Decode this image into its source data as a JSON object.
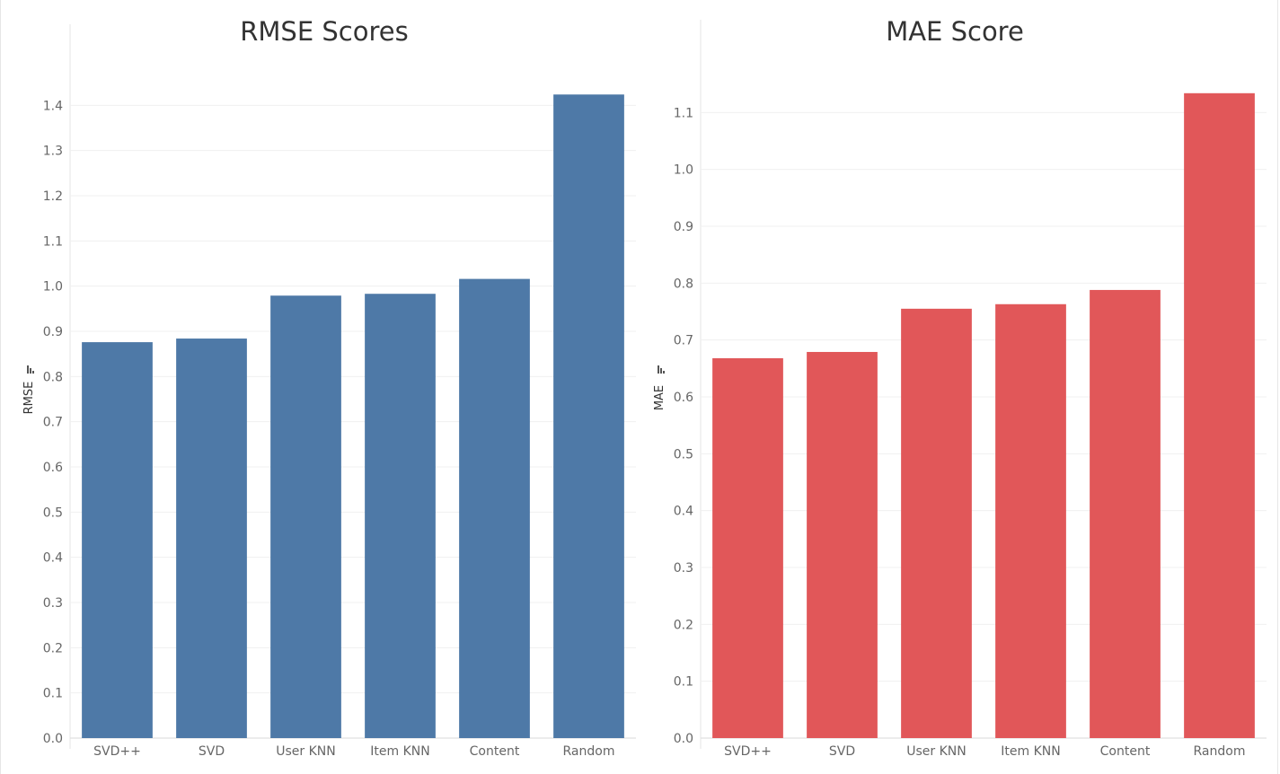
{
  "chart_data": [
    {
      "type": "bar",
      "title": "RMSE Scores",
      "ylabel": "RMSE",
      "categories": [
        "SVD++",
        "SVD",
        "User KNN",
        "Item KNN",
        "Content",
        "Random"
      ],
      "values": [
        0.876,
        0.884,
        0.979,
        0.983,
        1.016,
        1.424
      ],
      "ylim": [
        0,
        1.5
      ],
      "yticks": [
        "0.0",
        "0.1",
        "0.2",
        "0.3",
        "0.4",
        "0.5",
        "0.6",
        "0.7",
        "0.8",
        "0.9",
        "1.0",
        "1.1",
        "1.2",
        "1.3",
        "1.4"
      ],
      "color": "#4e79a7",
      "grid": true
    },
    {
      "type": "bar",
      "title": "MAE Score",
      "ylabel": "MAE",
      "categories": [
        "SVD++",
        "SVD",
        "User KNN",
        "Item KNN",
        "Content",
        "Random"
      ],
      "values": [
        0.668,
        0.679,
        0.755,
        0.763,
        0.788,
        1.134
      ],
      "ylim": [
        0,
        1.2
      ],
      "yticks": [
        "0.0",
        "0.1",
        "0.2",
        "0.3",
        "0.4",
        "0.5",
        "0.6",
        "0.7",
        "0.8",
        "0.9",
        "1.0",
        "1.1"
      ],
      "color": "#e15759",
      "grid": true
    }
  ]
}
